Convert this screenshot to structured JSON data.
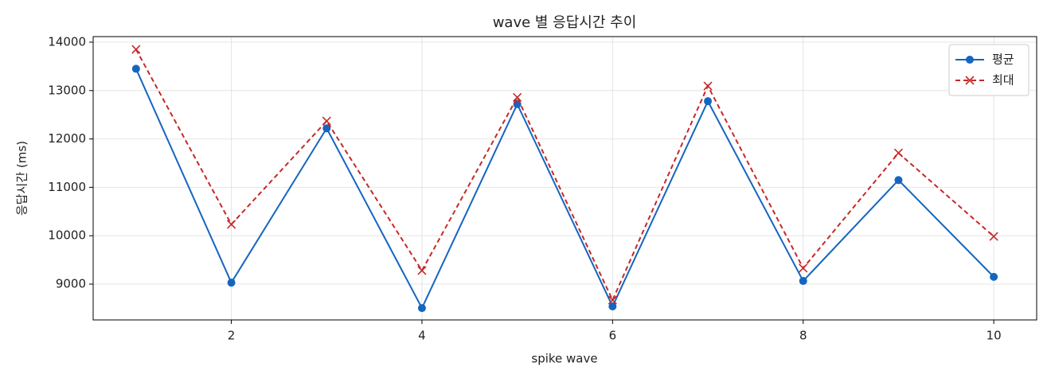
{
  "chart_data": {
    "type": "line",
    "title": "wave 별 응답시간 추이",
    "x_label": "spike wave",
    "y_label": "응답시간 (ms)",
    "x": [
      1,
      2,
      3,
      4,
      5,
      6,
      7,
      8,
      9,
      10
    ],
    "series": [
      {
        "name": "평균",
        "color": "#1565c0",
        "marker": "circle",
        "dashed": false,
        "values": [
          13450,
          9030,
          12220,
          8505,
          12720,
          8540,
          12780,
          9065,
          11150,
          9150
        ]
      },
      {
        "name": "최대",
        "color": "#c62828",
        "marker": "x",
        "dashed": true,
        "values": [
          13850,
          10235,
          12370,
          9280,
          12860,
          8670,
          13095,
          9330,
          11710,
          9985
        ]
      }
    ],
    "xlim": [
      0.55,
      10.45
    ],
    "ylim": [
      8260,
      14115
    ],
    "xticks": [
      2,
      4,
      6,
      8,
      10
    ],
    "yticks": [
      9000,
      10000,
      11000,
      12000,
      13000,
      14000
    ],
    "grid": true,
    "legend": "upper right"
  }
}
